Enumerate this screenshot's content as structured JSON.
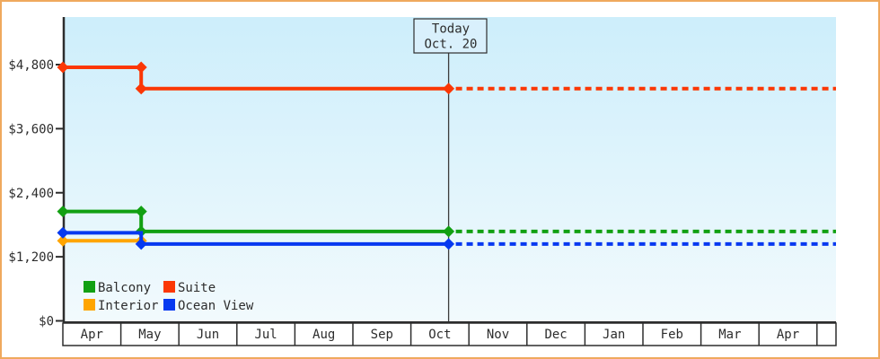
{
  "chart_data": {
    "type": "line",
    "description": "Cruise cabin price history by month with projection after today",
    "y_axis": {
      "tick_labels": [
        "$0",
        "$1,200",
        "$2,400",
        "$3,600",
        "$4,800"
      ],
      "tick_values": [
        0,
        1200,
        2400,
        3600,
        4800
      ],
      "max": 4800
    },
    "x_axis": {
      "month_labels": [
        "Apr",
        "May",
        "Jun",
        "Jul",
        "Aug",
        "Sep",
        "Oct",
        "Nov",
        "Dec",
        "Jan",
        "Feb",
        "Mar",
        "Apr"
      ]
    },
    "today": {
      "line1": "Today",
      "line2": "Oct. 20",
      "month_position": 6.65
    },
    "series": [
      {
        "name": "Suite",
        "color": "#fb3705",
        "projected": true,
        "points": [
          {
            "month": 0,
            "value": 4750,
            "dot": true
          },
          {
            "month": 1.35,
            "value": 4750,
            "dot": true
          },
          {
            "month": 1.35,
            "value": 4350,
            "dot": true
          },
          {
            "month": 6.65,
            "value": 4350,
            "dot": true
          }
        ]
      },
      {
        "name": "Balcony",
        "color": "#12a012",
        "projected": true,
        "points": [
          {
            "month": 0,
            "value": 2050,
            "dot": true
          },
          {
            "month": 1.35,
            "value": 2050,
            "dot": true
          },
          {
            "month": 1.35,
            "value": 1675,
            "dot": true
          },
          {
            "month": 6.65,
            "value": 1675,
            "dot": true
          }
        ]
      },
      {
        "name": "Interior",
        "color": "#ffa500",
        "projected": false,
        "points": [
          {
            "month": 0,
            "value": 1500,
            "dot": true
          },
          {
            "month": 1.35,
            "value": 1500,
            "dot": true
          }
        ]
      },
      {
        "name": "Ocean View",
        "color": "#0639f0",
        "projected": true,
        "points": [
          {
            "month": 0,
            "value": 1650,
            "dot": true
          },
          {
            "month": 1.35,
            "value": 1650,
            "dot": false
          },
          {
            "month": 1.35,
            "value": 1440,
            "dot": true
          },
          {
            "month": 6.65,
            "value": 1440,
            "dot": true
          }
        ]
      }
    ],
    "legend": [
      {
        "label": "Balcony",
        "color": "#12a012"
      },
      {
        "label": "Suite",
        "color": "#fb3705"
      },
      {
        "label": "Interior",
        "color": "#ffa500"
      },
      {
        "label": "Ocean View",
        "color": "#0639f0"
      }
    ]
  },
  "colors": {
    "frame_border": "#efa95e",
    "axis": "#2d2d2d",
    "plot_gradient_top": "#cdeefb",
    "plot_gradient_bottom": "#f2fafd",
    "today_box_fill": "#d9f0fc",
    "today_line": "#3c3c3c",
    "month_row_fill": "#ffffff"
  }
}
